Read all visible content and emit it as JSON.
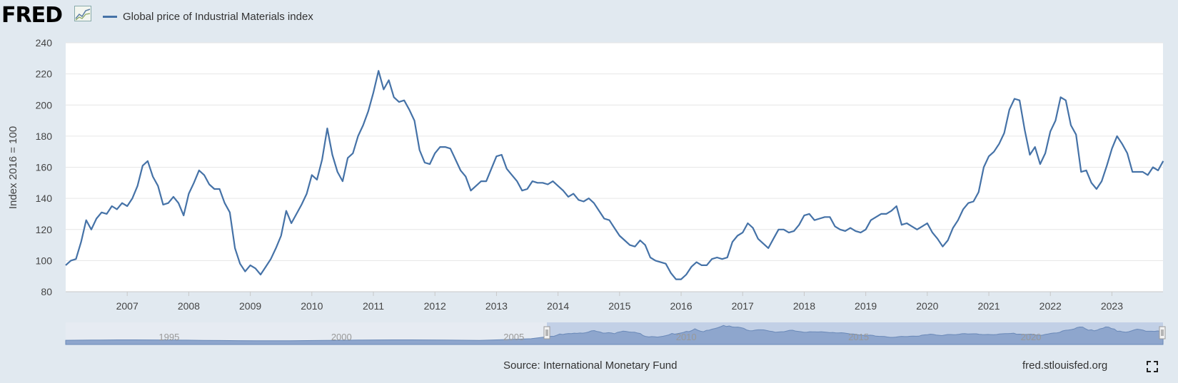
{
  "header": {
    "logo_text": "FRED",
    "legend_label": "Global price of Industrial Materials index"
  },
  "footer": {
    "source": "Source: International Monetary Fund",
    "site": "fred.stlouisfed.org"
  },
  "colors": {
    "line": "#4572a7",
    "plot_bg": "#ffffff",
    "page_bg": "#e1e9f0",
    "grid": "#e6e6e6",
    "navigator_fill": "#8ea6cd"
  },
  "chart_data": {
    "type": "line",
    "title": "Global price of Industrial Materials index",
    "ylabel": "Index 2016 = 100",
    "xlabel": "",
    "ylim": [
      80,
      240
    ],
    "yticks": [
      80,
      100,
      120,
      140,
      160,
      180,
      200,
      220,
      240
    ],
    "xlim": [
      2006.0,
      2023.83
    ],
    "xticks": [
      "2007",
      "2008",
      "2009",
      "2010",
      "2011",
      "2012",
      "2013",
      "2014",
      "2015",
      "2016",
      "2017",
      "2018",
      "2019",
      "2020",
      "2021",
      "2022",
      "2023"
    ],
    "grid": true,
    "legend": "top-left",
    "series": [
      {
        "name": "Global price of Industrial Materials index",
        "start": 2006.0,
        "step_months": 1,
        "values": [
          97,
          100,
          101,
          112,
          126,
          120,
          127,
          131,
          130,
          135,
          133,
          137,
          135,
          140,
          148,
          161,
          164,
          154,
          148,
          136,
          137,
          141,
          137,
          129,
          143,
          150,
          158,
          155,
          149,
          146,
          146,
          137,
          131,
          108,
          98,
          93,
          97,
          95,
          91,
          96,
          101,
          108,
          116,
          132,
          124,
          130,
          136,
          143,
          155,
          152,
          165,
          185,
          168,
          157,
          151,
          166,
          169,
          180,
          187,
          196,
          208,
          222,
          210,
          216,
          205,
          202,
          203,
          197,
          190,
          171,
          163,
          162,
          169,
          173,
          173,
          172,
          165,
          158,
          154,
          145,
          148,
          151,
          151,
          159,
          167,
          168,
          159,
          155,
          151,
          145,
          146,
          151,
          150,
          150,
          149,
          151,
          148,
          145,
          141,
          143,
          139,
          138,
          140,
          137,
          132,
          127,
          126,
          121,
          116,
          113,
          110,
          109,
          113,
          110,
          102,
          100,
          99,
          98,
          92,
          88,
          88,
          91,
          96,
          99,
          97,
          97,
          101,
          102,
          101,
          102,
          112,
          116,
          118,
          124,
          121,
          114,
          111,
          108,
          114,
          120,
          120,
          118,
          119,
          123,
          129,
          130,
          126,
          127,
          128,
          128,
          122,
          120,
          119,
          121,
          119,
          118,
          120,
          126,
          128,
          130,
          130,
          132,
          135,
          123,
          124,
          122,
          120,
          122,
          124,
          118,
          114,
          109,
          113,
          121,
          126,
          133,
          137,
          138,
          144,
          160,
          167,
          170,
          175,
          182,
          197,
          204,
          203,
          184,
          168,
          173,
          162,
          169,
          183,
          190,
          205,
          203,
          187,
          181,
          157,
          158,
          150,
          146,
          151,
          161,
          172,
          180,
          175,
          169,
          157,
          157,
          157,
          155,
          160,
          158,
          164
        ]
      }
    ],
    "navigator": {
      "labels": [
        "1995",
        "2000",
        "2005",
        "2010",
        "2015",
        "2020"
      ]
    }
  }
}
